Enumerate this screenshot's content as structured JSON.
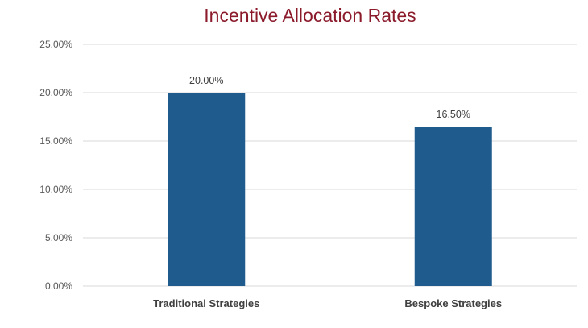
{
  "chart_data": {
    "type": "bar",
    "title": "Incentive Allocation Rates",
    "categories": [
      "Traditional Strategies",
      "Bespoke Strategies"
    ],
    "values": [
      20.0,
      16.5
    ],
    "data_labels": [
      "20.00%",
      "16.50%"
    ],
    "ylim": [
      0,
      25
    ],
    "yticks": [
      0,
      5,
      10,
      15,
      20,
      25
    ],
    "ytick_labels": [
      "0.00%",
      "5.00%",
      "10.00%",
      "15.00%",
      "20.00%",
      "25.00%"
    ],
    "xlabel": "",
    "ylabel": "",
    "grid": true,
    "legend": "none",
    "colors": {
      "bar": "#1f5b8c",
      "title": "#8b1a2b",
      "grid": "#d9d9d9"
    }
  }
}
